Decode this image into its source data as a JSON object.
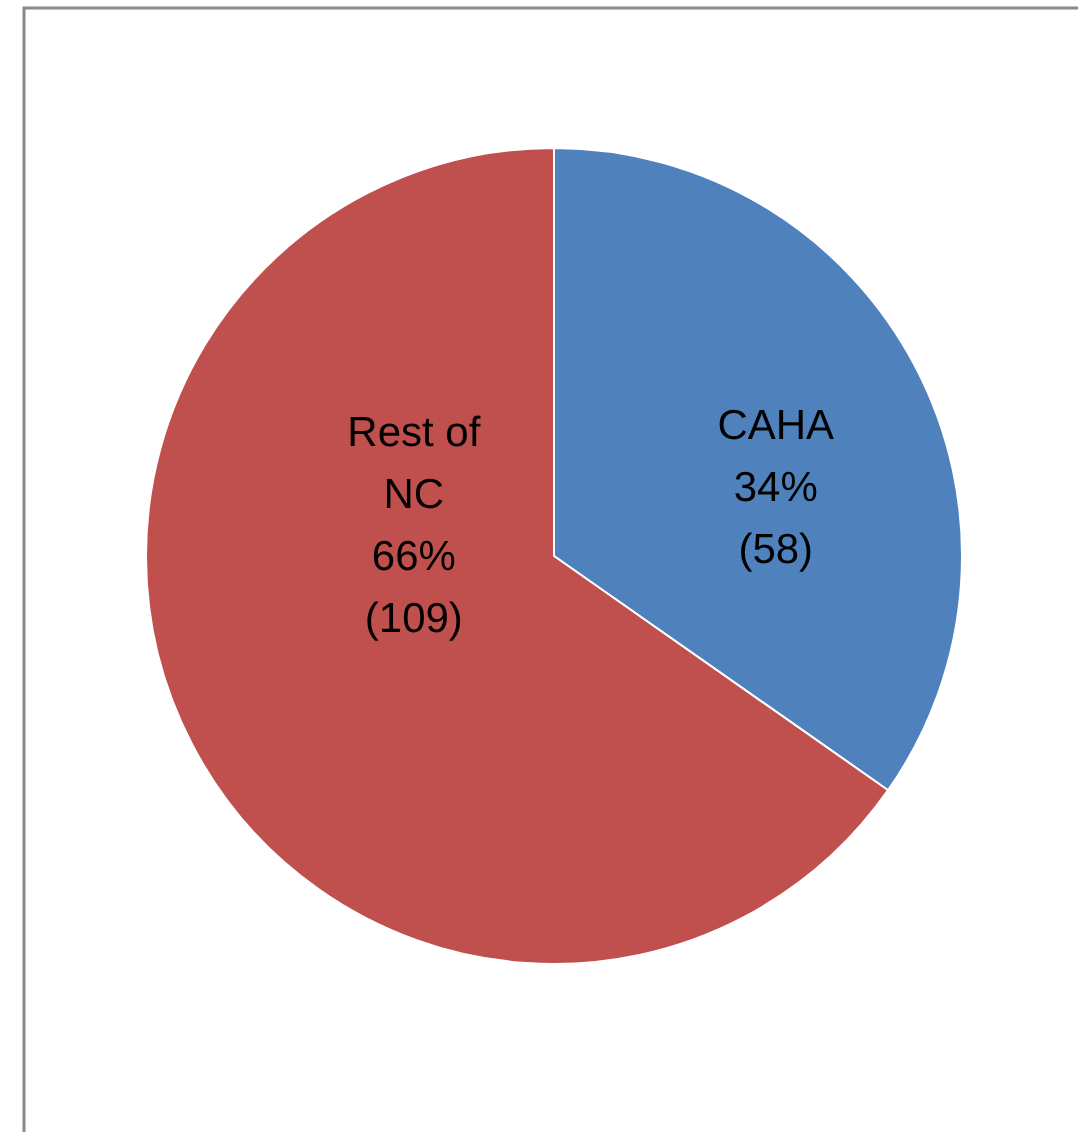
{
  "chart_data": {
    "type": "pie",
    "categories": [
      "CAHA",
      "Rest of NC"
    ],
    "values": [
      58,
      109
    ],
    "colors": [
      "#4f81bd",
      "#c0504d"
    ],
    "value_labels": [
      "34% (58)",
      "66% (109)"
    ],
    "legend": false
  }
}
